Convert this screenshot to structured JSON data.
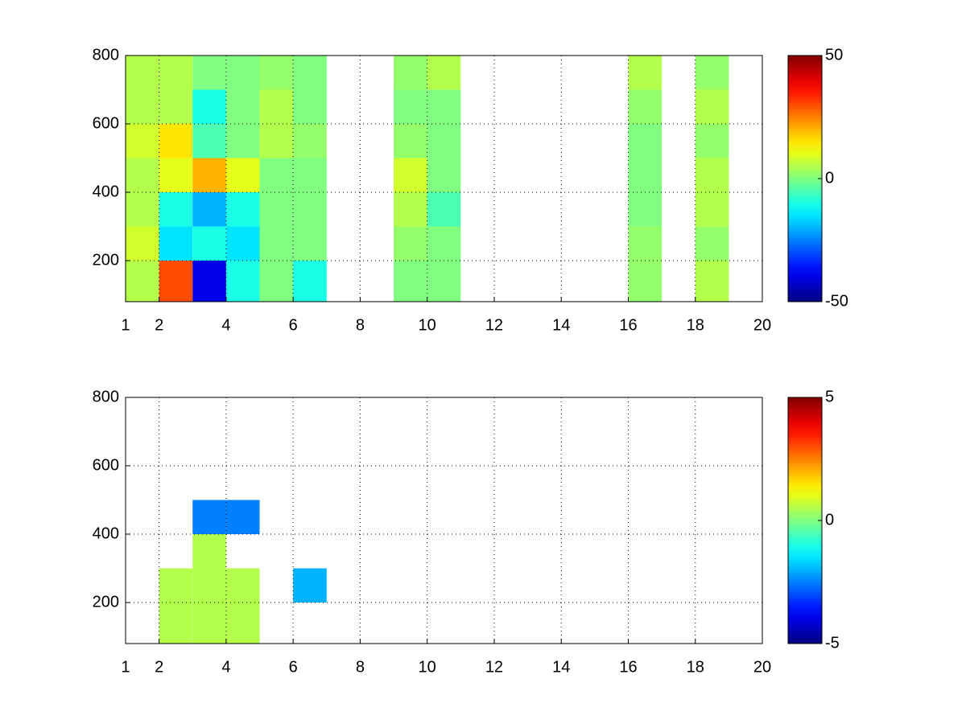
{
  "chart_data": [
    {
      "type": "heatmap",
      "colormap": "jet",
      "grid": true,
      "xlim": [
        1,
        20
      ],
      "xticks": [
        1,
        2,
        4,
        6,
        8,
        10,
        12,
        14,
        16,
        18,
        20
      ],
      "ylim": [
        80,
        800
      ],
      "yticks": [
        200,
        400,
        600,
        800
      ],
      "clim": [
        -50,
        50
      ],
      "cticks": [
        -50,
        0,
        50
      ],
      "xbins": [
        1,
        2,
        3,
        4,
        5,
        6,
        7,
        8,
        9,
        10,
        11,
        12,
        13,
        14,
        15,
        16,
        17,
        18,
        19,
        20
      ],
      "ybins": [
        80,
        200,
        300,
        400,
        500,
        600,
        700,
        800
      ],
      "values": [
        [
          5,
          30,
          -40,
          -10,
          0,
          -10,
          null,
          null,
          0,
          0,
          null,
          null,
          null,
          null,
          null,
          2,
          null,
          5,
          null
        ],
        [
          8,
          -15,
          -10,
          -15,
          0,
          0,
          null,
          null,
          2,
          0,
          null,
          null,
          null,
          null,
          null,
          2,
          null,
          2,
          null
        ],
        [
          5,
          -10,
          -20,
          -10,
          0,
          0,
          null,
          null,
          5,
          -5,
          null,
          null,
          null,
          null,
          null,
          0,
          null,
          5,
          null
        ],
        [
          5,
          10,
          20,
          10,
          0,
          0,
          null,
          null,
          8,
          0,
          null,
          null,
          null,
          null,
          null,
          0,
          null,
          5,
          null
        ],
        [
          8,
          15,
          -5,
          0,
          5,
          2,
          null,
          null,
          2,
          0,
          null,
          null,
          null,
          null,
          null,
          0,
          null,
          2,
          null
        ],
        [
          5,
          5,
          -10,
          0,
          5,
          0,
          null,
          null,
          0,
          0,
          null,
          null,
          null,
          null,
          null,
          2,
          null,
          5,
          null
        ],
        [
          5,
          5,
          0,
          0,
          2,
          0,
          null,
          null,
          2,
          5,
          null,
          null,
          null,
          null,
          null,
          5,
          null,
          2,
          null
        ]
      ]
    },
    {
      "type": "heatmap",
      "colormap": "jet",
      "grid": true,
      "xlim": [
        1,
        20
      ],
      "xticks": [
        1,
        2,
        4,
        6,
        8,
        10,
        12,
        14,
        16,
        18,
        20
      ],
      "ylim": [
        80,
        800
      ],
      "yticks": [
        200,
        400,
        600,
        800
      ],
      "clim": [
        -5,
        5
      ],
      "cticks": [
        -5,
        0,
        5
      ],
      "xbins": [
        1,
        2,
        3,
        4,
        5,
        6,
        7,
        8,
        9,
        10,
        11,
        12,
        13,
        14,
        15,
        16,
        17,
        18,
        19,
        20
      ],
      "ybins": [
        80,
        200,
        300,
        400,
        500,
        600,
        700,
        800
      ],
      "values": [
        [
          null,
          0.5,
          0.5,
          0.5,
          null,
          null,
          null,
          null,
          null,
          null,
          null,
          null,
          null,
          null,
          null,
          null,
          null,
          null,
          null
        ],
        [
          null,
          0.5,
          0.5,
          0.5,
          null,
          -2,
          null,
          null,
          null,
          null,
          null,
          null,
          null,
          null,
          null,
          null,
          null,
          null,
          null
        ],
        [
          null,
          null,
          0.5,
          null,
          null,
          null,
          null,
          null,
          null,
          null,
          null,
          null,
          null,
          null,
          null,
          null,
          null,
          null,
          null
        ],
        [
          null,
          null,
          -2.5,
          -2.5,
          null,
          null,
          null,
          null,
          null,
          null,
          null,
          null,
          null,
          null,
          null,
          null,
          null,
          null,
          null
        ],
        [
          null,
          null,
          null,
          null,
          null,
          null,
          null,
          null,
          null,
          null,
          null,
          null,
          null,
          null,
          null,
          null,
          null,
          null,
          null
        ],
        [
          null,
          null,
          null,
          null,
          null,
          null,
          null,
          null,
          null,
          null,
          null,
          null,
          null,
          null,
          null,
          null,
          null,
          null,
          null
        ],
        [
          null,
          null,
          null,
          null,
          null,
          null,
          null,
          null,
          null,
          null,
          null,
          null,
          null,
          null,
          null,
          null,
          null,
          null,
          null
        ]
      ]
    }
  ]
}
